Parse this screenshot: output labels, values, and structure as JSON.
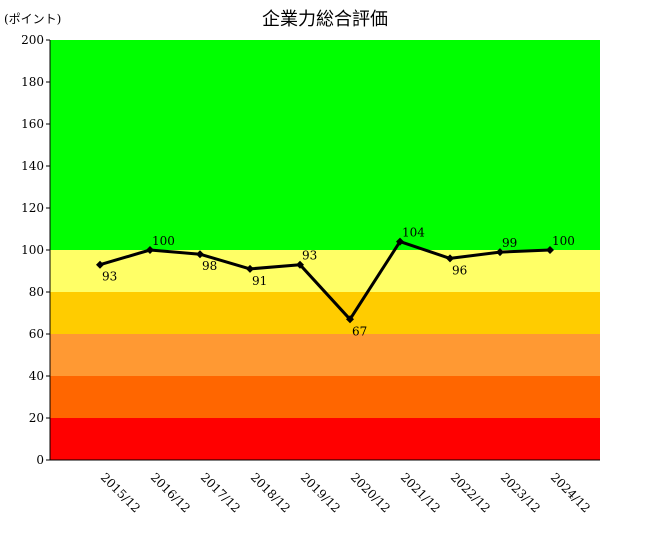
{
  "chart_data": {
    "type": "line",
    "title": "企業力総合評価",
    "unit_label": "(ポイント)",
    "categories": [
      "2015/12",
      "2016/12",
      "2017/12",
      "2018/12",
      "2019/12",
      "2020/12",
      "2021/12",
      "2022/12",
      "2023/12",
      "2024/12"
    ],
    "series": [
      {
        "values": [
          93,
          100,
          98,
          91,
          93,
          67,
          104,
          96,
          99,
          100
        ],
        "color": "#000000"
      }
    ],
    "ylim": [
      0,
      200
    ],
    "yticks": [
      "0",
      "20",
      "40",
      "60",
      "80",
      "100",
      "120",
      "140",
      "160",
      "180",
      "200"
    ],
    "data_labels": [
      "93",
      "100",
      "98",
      "91",
      "93",
      "67",
      "104",
      "96",
      "99",
      "100"
    ],
    "background_bands": [
      {
        "from": 0,
        "to": 20,
        "color": "#ff0000"
      },
      {
        "from": 20,
        "to": 40,
        "color": "#ff6600"
      },
      {
        "from": 40,
        "to": 60,
        "color": "#ff9933"
      },
      {
        "from": 60,
        "to": 80,
        "color": "#ffcc00"
      },
      {
        "from": 80,
        "to": 100,
        "color": "#ffff66"
      },
      {
        "from": 100,
        "to": 200,
        "color": "#00ff00"
      }
    ],
    "grid": false,
    "legend": "none"
  }
}
